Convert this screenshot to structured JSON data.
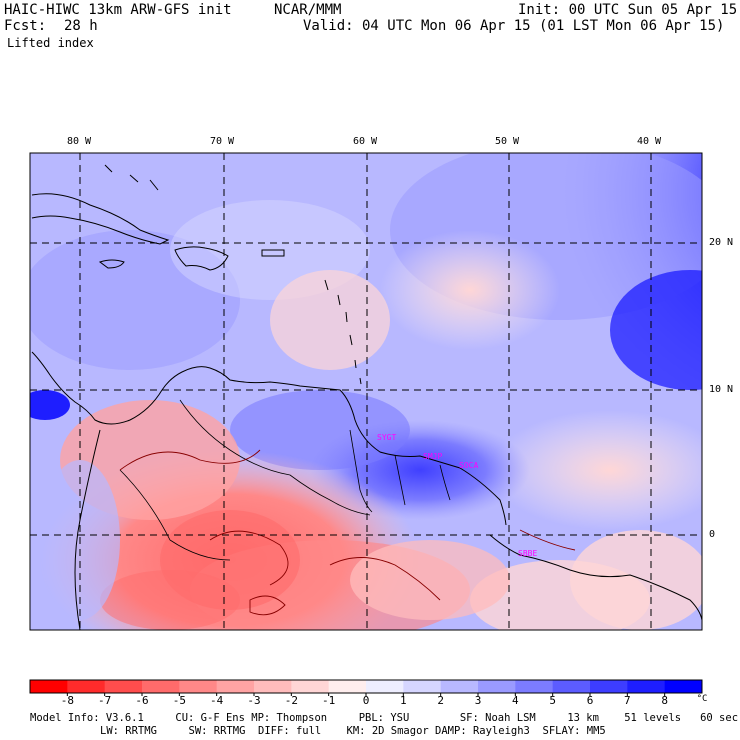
{
  "header": {
    "model": "HAIC-HIWC 13km ARW-GFS init",
    "org": "NCAR/MMM",
    "init": "Init: 00 UTC Sun 05 Apr 15",
    "fcst_label": "Fcst:",
    "fcst_value": "28 h",
    "valid": "Valid: 04 UTC Mon 06 Apr 15 (01 LST Mon 06 Apr 15)",
    "field": "Lifted index"
  },
  "map": {
    "lon_labels": [
      "80 W",
      "70 W",
      "60 W",
      "50 W",
      "40 W"
    ],
    "lat_labels": [
      "20 N",
      "10 N",
      "0"
    ],
    "stations": [
      "SYGT",
      "SMJP",
      "SOCA",
      "SBBE"
    ]
  },
  "legend": {
    "ticks": [
      "-8",
      "-7",
      "-6",
      "-5",
      "-4",
      "-3",
      "-2",
      "-1",
      "0",
      "1",
      "2",
      "3",
      "4",
      "5",
      "6",
      "7",
      "8"
    ],
    "unit": "°C",
    "colors": [
      "#ff0000",
      "#ff2b2b",
      "#ff4d4d",
      "#ff6b6b",
      "#ff8888",
      "#ffa3a3",
      "#ffbcbc",
      "#ffd6d6",
      "#ffeeee",
      "#eeeeff",
      "#d6d6ff",
      "#b8b8ff",
      "#9a9aff",
      "#7c7cff",
      "#5c5cff",
      "#3d3dff",
      "#1e1eff",
      "#0000ff"
    ]
  },
  "model_info": {
    "line1": "Model Info: V3.6.1     CU: G-F Ens MP: Thompson     PBL: YSU        SF: Noah LSM     13 km    51 levels   60 sec",
    "line2": "LW: RRTMG     SW: RRTMG  DIFF: full    KM: 2D Smagor DAMP: Rayleigh3  SFLAY: MM5"
  }
}
